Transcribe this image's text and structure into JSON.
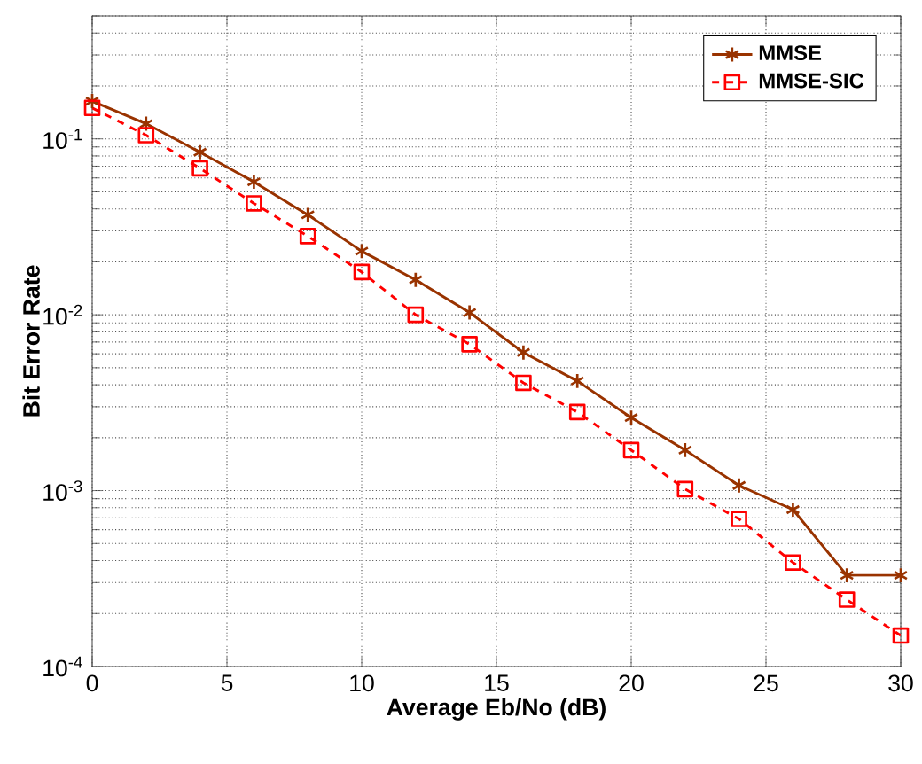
{
  "chart_data": {
    "type": "line",
    "xlabel": "Average Eb/No (dB)",
    "ylabel": "Bit Error Rate",
    "x": [
      0,
      2,
      4,
      6,
      8,
      10,
      12,
      14,
      16,
      18,
      20,
      22,
      24,
      26,
      28,
      30
    ],
    "series": [
      {
        "name": "MMSE",
        "color": "#993300",
        "marker": "cross",
        "line_style": "solid",
        "values": [
          0.164,
          0.122,
          0.084,
          0.057,
          0.037,
          0.023,
          0.0158,
          0.0103,
          0.0061,
          0.0042,
          0.0026,
          0.0017,
          0.00107,
          0.00078,
          0.00033,
          0.00033
        ]
      },
      {
        "name": "MMSE-SIC",
        "color": "#ff0000",
        "marker": "square",
        "line_style": "dashed",
        "values": [
          0.15,
          0.105,
          0.068,
          0.043,
          0.028,
          0.0175,
          0.01,
          0.0068,
          0.0041,
          0.0028,
          0.0017,
          0.00102,
          0.00069,
          0.00039,
          0.00024,
          0.00015
        ]
      }
    ],
    "xlim": [
      0,
      30
    ],
    "ylim": [
      0.0001,
      0.5
    ],
    "xticks": [
      0,
      5,
      10,
      15,
      20,
      25,
      30
    ],
    "yticks": [
      {
        "value": 0.0001,
        "label": "10$^{-4}$"
      },
      {
        "value": 0.001,
        "label": "10$^{-3}$"
      },
      {
        "value": 0.01,
        "label": "10$^{-2}$"
      },
      {
        "value": 0.1,
        "label": "10$^{-1}$"
      }
    ],
    "log": "y",
    "grid": true,
    "legend": "top right"
  }
}
